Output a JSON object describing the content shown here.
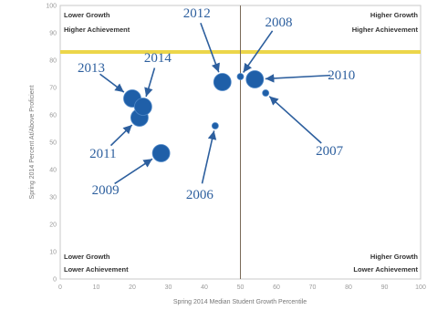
{
  "chart_data": {
    "type": "scatter",
    "xlabel": "Spring 2014 Median Student Growth Percentile",
    "ylabel": "Spring 2014 Percent At/Above Proficient",
    "xlim": [
      0,
      100
    ],
    "ylim": [
      0,
      100
    ],
    "xticks": [
      0,
      10,
      20,
      30,
      40,
      50,
      60,
      70,
      80,
      90,
      100
    ],
    "yticks": [
      0,
      10,
      20,
      30,
      40,
      50,
      60,
      70,
      80,
      90,
      100
    ],
    "grid": false,
    "reference_lines": {
      "x": 50,
      "y": 83
    },
    "quadrants": {
      "top_left": [
        "Lower Growth",
        "Higher Achievement"
      ],
      "top_right": [
        "Higher Growth",
        "Higher Achievement"
      ],
      "bottom_left": [
        "Lower Growth",
        "Lower Achievement"
      ],
      "bottom_right": [
        "Higher Growth",
        "Lower Achievement"
      ]
    },
    "points": [
      {
        "label": "2006",
        "x": 43,
        "y": 56,
        "size": 2
      },
      {
        "label": "2007",
        "x": 57,
        "y": 68,
        "size": 2
      },
      {
        "label": "2008",
        "x": 50,
        "y": 74,
        "size": 2
      },
      {
        "label": "2009",
        "x": 28,
        "y": 46,
        "size": 4
      },
      {
        "label": "2010",
        "x": 54,
        "y": 73,
        "size": 4
      },
      {
        "label": "2011",
        "x": 22,
        "y": 59,
        "size": 4
      },
      {
        "label": "2012",
        "x": 45,
        "y": 72,
        "size": 4
      },
      {
        "label": "2013",
        "x": 20,
        "y": 66,
        "size": 4
      },
      {
        "label": "2014",
        "x": 23,
        "y": 63,
        "size": 4
      }
    ],
    "colors": {
      "point": "#1f5fa8",
      "annotation": "#2d5f9e",
      "reference_line_y": "#ecd64a",
      "reference_line_x": "#7a6a58"
    }
  }
}
